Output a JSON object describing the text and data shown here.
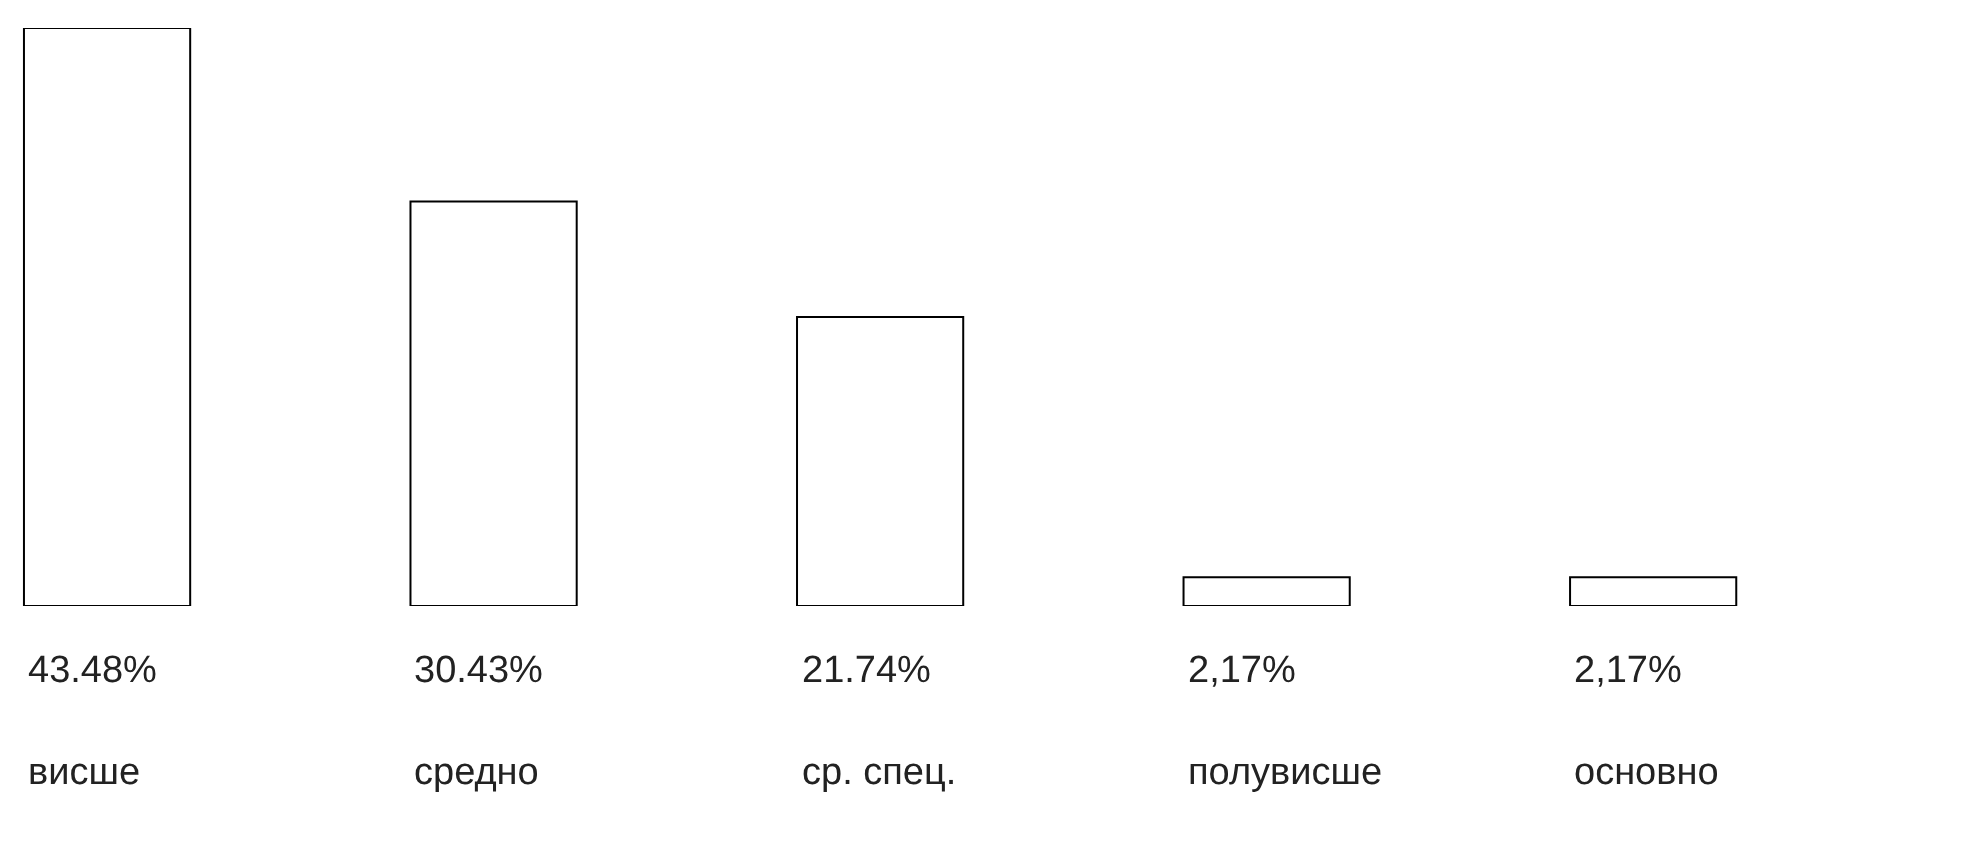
{
  "chart_data": {
    "type": "bar",
    "categories": [
      "висше",
      "средно",
      "ср. спец.",
      "полувисше",
      "основно"
    ],
    "values": [
      43.48,
      30.43,
      21.74,
      2.17,
      2.17
    ],
    "value_labels": [
      "43.48%",
      "30.43%",
      "21.74%",
      "2,17%",
      "2,17%"
    ],
    "color": "#ffffff",
    "ylim": [
      0,
      43.48
    ]
  }
}
